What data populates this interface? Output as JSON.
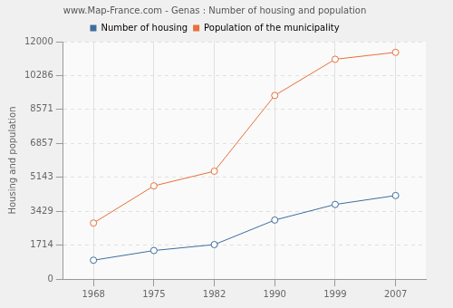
{
  "chart_data": {
    "type": "line",
    "title": "www.Map-France.com - Genas : Number of housing and population",
    "y_label": "Housing and population",
    "categories": [
      "1968",
      "1975",
      "1982",
      "1990",
      "1999",
      "2007"
    ],
    "series": [
      {
        "name": "Number of housing",
        "color": "#3e6e9e",
        "marker": "circle",
        "values": [
          950,
          1440,
          1740,
          2980,
          3770,
          4220
        ]
      },
      {
        "name": "Population of the municipality",
        "color": "#e8703a",
        "marker": "circle",
        "values": [
          2830,
          4710,
          5450,
          9280,
          11110,
          11460
        ]
      }
    ],
    "ylim": [
      0,
      12000
    ],
    "yticks": [
      0,
      1714,
      3429,
      5143,
      6857,
      8571,
      10286,
      12000
    ],
    "grid": true,
    "legend": "top"
  }
}
